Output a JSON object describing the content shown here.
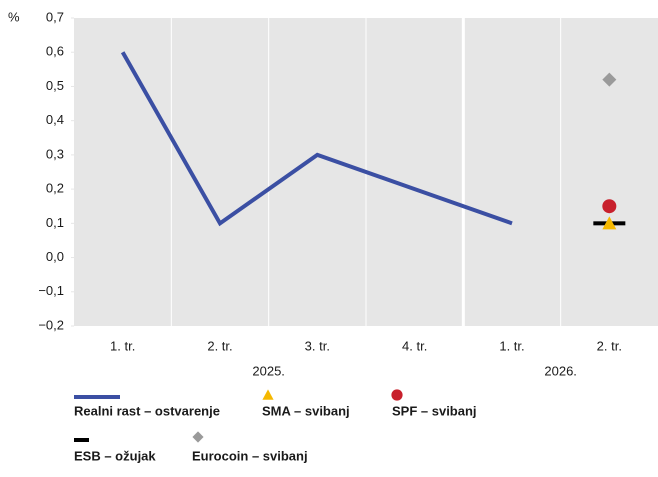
{
  "chart_data": {
    "type": "line",
    "y_label": "%",
    "categories": [
      "1. tr.",
      "2. tr.",
      "3. tr.",
      "4. tr.",
      "1. tr.",
      "2. tr."
    ],
    "groups": [
      {
        "label": "2025.",
        "span": 4
      },
      {
        "label": "2026.",
        "span": 2
      }
    ],
    "series": [
      {
        "name": "Realni rast – ostvarenje",
        "color": "#3b4fa3",
        "marker": "line",
        "values": [
          0.6,
          0.1,
          0.3,
          0.2,
          0.1,
          null
        ]
      },
      {
        "name": "SMA – svibanj",
        "color": "#f5b800",
        "marker": "triangle",
        "values": [
          null,
          null,
          null,
          null,
          null,
          0.1
        ]
      },
      {
        "name": "SPF – svibanj",
        "color": "#c8202c",
        "marker": "circle",
        "values": [
          null,
          null,
          null,
          null,
          null,
          0.15
        ]
      },
      {
        "name": "ESB – ožujak",
        "color": "#000000",
        "marker": "dash",
        "values": [
          null,
          null,
          null,
          null,
          null,
          0.1
        ]
      },
      {
        "name": "Eurocoin – svibanj",
        "color": "#9a9a9a",
        "marker": "diamond",
        "values": [
          null,
          null,
          null,
          null,
          null,
          0.52
        ]
      }
    ],
    "ylim": [
      -0.2,
      0.7
    ],
    "yticks": [
      {
        "value": -0.2,
        "label": "−0,2"
      },
      {
        "value": -0.1,
        "label": "−0,1"
      },
      {
        "value": 0,
        "label": "0,0"
      },
      {
        "value": 0.1,
        "label": "0,1"
      },
      {
        "value": 0.2,
        "label": "0,2"
      },
      {
        "value": 0.3,
        "label": "0,3"
      },
      {
        "value": 0.4,
        "label": "0,4"
      },
      {
        "value": 0.5,
        "label": "0,5"
      },
      {
        "value": 0.6,
        "label": "0,6"
      },
      {
        "value": 0.7,
        "label": "0,7"
      }
    ],
    "background": "#e6e6e6"
  }
}
